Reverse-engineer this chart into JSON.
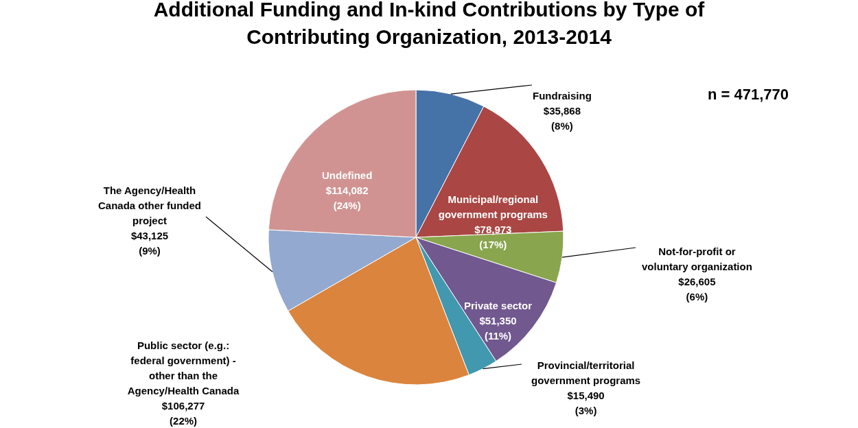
{
  "chart_data": {
    "type": "pie",
    "title": "Additional Funding and In-kind Contributions by Type of Contributing Organization, 2013-2014",
    "categories": [
      "Fundraising",
      "Municipal/regional government programs",
      "Not-for-profit or voluntary organization",
      "Private sector",
      "Provincial/territorial government programs",
      "Public sector (e.g.: federal government) - other than the Agency/Health Canada",
      "The Agency/Health Canada other funded project",
      "Undefined"
    ],
    "values": [
      35868,
      78973,
      26605,
      51350,
      15490,
      106277,
      43125,
      114082
    ],
    "value_labels": [
      "$35,868\n(8%)",
      "$78,973\n(17%)",
      "$26,605\n(6%)",
      "$51,350\n(11%)",
      "$15,490\n(3%)",
      "$106,277\n(22%)",
      "$43,125\n(9%)",
      "$114,082\n(24%)"
    ],
    "colors": [
      "#4572a7",
      "#aa4643",
      "#89a54e",
      "#71588f",
      "#4198af",
      "#db843d",
      "#93a9cf",
      "#d19392"
    ],
    "annotations": [
      "n = 471,770"
    ],
    "legend": false
  }
}
